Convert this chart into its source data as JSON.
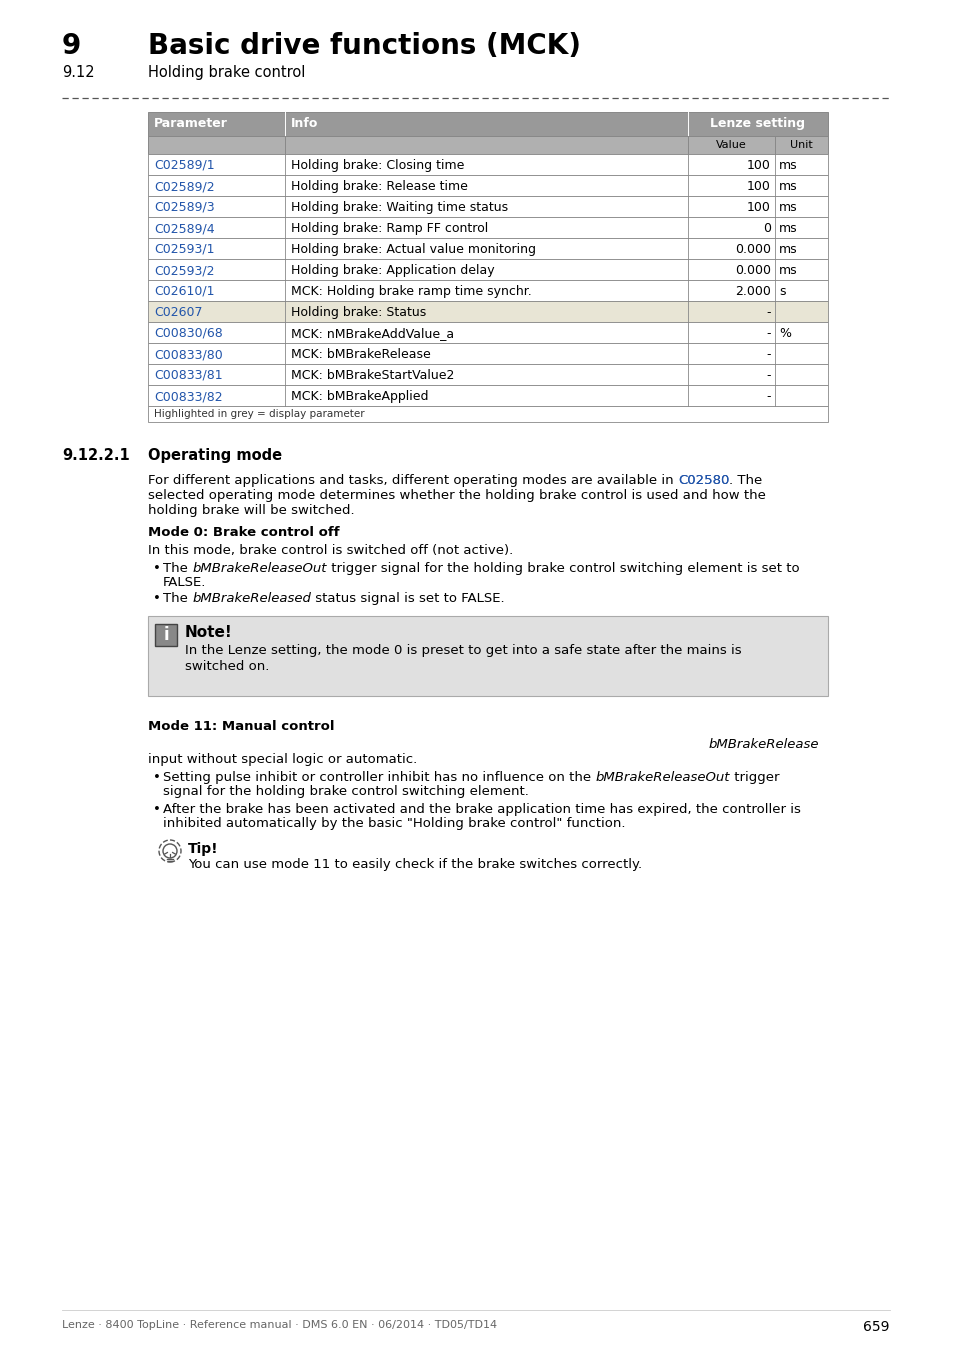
{
  "page_title_number": "9",
  "page_title_text": "Basic drive functions (MCK)",
  "page_subtitle_number": "9.12",
  "page_subtitle_text": "Holding brake control",
  "section_number": "9.12.2.1",
  "section_title": "Operating mode",
  "table_rows": [
    {
      "param": "C02589/1",
      "info": "Holding brake: Closing time",
      "value": "100",
      "unit": "ms",
      "grey": false
    },
    {
      "param": "C02589/2",
      "info": "Holding brake: Release time",
      "value": "100",
      "unit": "ms",
      "grey": false
    },
    {
      "param": "C02589/3",
      "info": "Holding brake: Waiting time status",
      "value": "100",
      "unit": "ms",
      "grey": false
    },
    {
      "param": "C02589/4",
      "info": "Holding brake: Ramp FF control",
      "value": "0",
      "unit": "ms",
      "grey": false
    },
    {
      "param": "C02593/1",
      "info": "Holding brake: Actual value monitoring",
      "value": "0.000",
      "unit": "ms",
      "grey": false
    },
    {
      "param": "C02593/2",
      "info": "Holding brake: Application delay",
      "value": "0.000",
      "unit": "ms",
      "grey": false
    },
    {
      "param": "C02610/1",
      "info": "MCK: Holding brake ramp time synchr.",
      "value": "2.000",
      "unit": "s",
      "grey": false
    },
    {
      "param": "C02607",
      "info": "Holding brake: Status",
      "value": "-",
      "unit": "",
      "grey": true
    },
    {
      "param": "C00830/68",
      "info": "MCK: nMBrakeAddValue_a",
      "value": "-",
      "unit": "%",
      "grey": false
    },
    {
      "param": "C00833/80",
      "info": "MCK: bMBrakeRelease",
      "value": "-",
      "unit": "",
      "grey": false
    },
    {
      "param": "C00833/81",
      "info": "MCK: bMBrakeStartValue2",
      "value": "-",
      "unit": "",
      "grey": false
    },
    {
      "param": "C00833/82",
      "info": "MCK: bMBrakeApplied",
      "value": "-",
      "unit": "",
      "grey": false
    }
  ],
  "table_footer": "Highlighted in grey = display parameter",
  "footer_text": "Lenze · 8400 TopLine · Reference manual · DMS 6.0 EN · 06/2014 · TD05/TD14",
  "page_number": "659",
  "bg_color": "#ffffff",
  "header_bg": "#999999",
  "subheader_bg": "#b0b0b0",
  "grey_row_bg": "#e8e5d5",
  "white_row_bg": "#ffffff",
  "table_border": "#888888",
  "link_color": "#2255aa",
  "note_bg": "#e0e0e0"
}
